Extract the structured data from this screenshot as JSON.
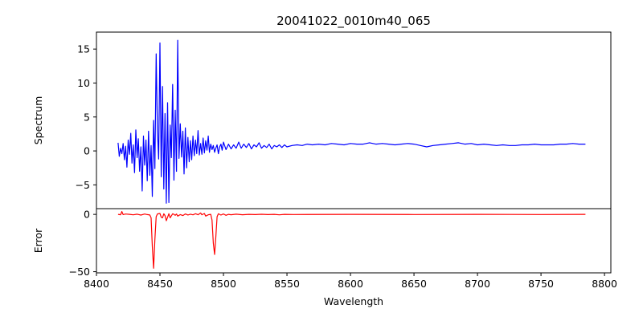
{
  "chart_data": [
    {
      "type": "line",
      "title": "20041022_0010m40_065",
      "xlabel": "",
      "ylabel": "Spectrum",
      "xlim": [
        8400,
        8805
      ],
      "ylim": [
        -8.5,
        17.5
      ],
      "yticks": [
        -5,
        0,
        5,
        10,
        15
      ],
      "grid": false,
      "series": [
        {
          "color": "#0000ff",
          "points": [
            [
              8417,
              1.2
            ],
            [
              8418,
              -0.8
            ],
            [
              8419,
              0.4
            ],
            [
              8420,
              -0.4
            ],
            [
              8421,
              1.1
            ],
            [
              8422,
              -1.3
            ],
            [
              8423,
              0.7
            ],
            [
              8424,
              -2.4
            ],
            [
              8425,
              1.6
            ],
            [
              8426,
              -0.5
            ],
            [
              8427,
              2.6
            ],
            [
              8428,
              -1.8
            ],
            [
              8429,
              0.9
            ],
            [
              8430,
              -3.2
            ],
            [
              8431,
              3.1
            ],
            [
              8432,
              -1.0
            ],
            [
              8433,
              1.8
            ],
            [
              8434,
              -3.0
            ],
            [
              8435,
              0.6
            ],
            [
              8436,
              -5.9
            ],
            [
              8437,
              2.2
            ],
            [
              8438,
              -2.1
            ],
            [
              8439,
              1.6
            ],
            [
              8440,
              -4.4
            ],
            [
              8441,
              2.9
            ],
            [
              8442,
              -3.6
            ],
            [
              8443,
              0.8
            ],
            [
              8444,
              -6.7
            ],
            [
              8445,
              4.5
            ],
            [
              8446,
              -2.6
            ],
            [
              8447,
              14.3
            ],
            [
              8448,
              3.0
            ],
            [
              8449,
              -1.2
            ],
            [
              8450,
              15.9
            ],
            [
              8451,
              -3.8
            ],
            [
              8452,
              9.5
            ],
            [
              8453,
              -5.6
            ],
            [
              8454,
              5.5
            ],
            [
              8455,
              -7.7
            ],
            [
              8456,
              7.1
            ],
            [
              8457,
              -7.6
            ],
            [
              8458,
              3.8
            ],
            [
              8459,
              -1.0
            ],
            [
              8460,
              9.8
            ],
            [
              8461,
              -4.3
            ],
            [
              8462,
              6.0
            ],
            [
              8463,
              -3.0
            ],
            [
              8464,
              16.3
            ],
            [
              8465,
              -1.1
            ],
            [
              8466,
              4.0
            ],
            [
              8467,
              -0.9
            ],
            [
              8468,
              2.9
            ],
            [
              8469,
              -3.4
            ],
            [
              8470,
              3.4
            ],
            [
              8471,
              -2.5
            ],
            [
              8472,
              2.0
            ],
            [
              8473,
              -1.6
            ],
            [
              8474,
              1.5
            ],
            [
              8475,
              -1.3
            ],
            [
              8476,
              2.2
            ],
            [
              8477,
              -0.7
            ],
            [
              8478,
              1.6
            ],
            [
              8479,
              -0.4
            ],
            [
              8480,
              3.0
            ],
            [
              8481,
              -0.6
            ],
            [
              8482,
              1.1
            ],
            [
              8483,
              -0.5
            ],
            [
              8484,
              1.9
            ],
            [
              8485,
              -0.3
            ],
            [
              8486,
              1.5
            ],
            [
              8487,
              0.1
            ],
            [
              8488,
              2.2
            ],
            [
              8489,
              -0.2
            ],
            [
              8490,
              1.0
            ],
            [
              8491,
              0.2
            ],
            [
              8492,
              0.8
            ],
            [
              8493,
              -0.2
            ],
            [
              8494,
              0.4
            ],
            [
              8495,
              0.9
            ],
            [
              8496,
              -0.4
            ],
            [
              8497,
              0.6
            ],
            [
              8498,
              1.0
            ],
            [
              8499,
              0.1
            ],
            [
              8500,
              1.3
            ],
            [
              8502,
              0.2
            ],
            [
              8504,
              1.0
            ],
            [
              8506,
              0.3
            ],
            [
              8508,
              0.9
            ],
            [
              8510,
              0.4
            ],
            [
              8512,
              1.3
            ],
            [
              8514,
              0.4
            ],
            [
              8516,
              1.0
            ],
            [
              8518,
              0.5
            ],
            [
              8520,
              1.1
            ],
            [
              8522,
              0.3
            ],
            [
              8524,
              0.9
            ],
            [
              8526,
              0.6
            ],
            [
              8528,
              1.2
            ],
            [
              8530,
              0.4
            ],
            [
              8532,
              0.8
            ],
            [
              8534,
              0.5
            ],
            [
              8536,
              1.0
            ],
            [
              8538,
              0.3
            ],
            [
              8540,
              0.8
            ],
            [
              8542,
              0.6
            ],
            [
              8544,
              0.9
            ],
            [
              8546,
              0.5
            ],
            [
              8548,
              0.9
            ],
            [
              8550,
              0.6
            ],
            [
              8554,
              0.8
            ],
            [
              8558,
              0.9
            ],
            [
              8562,
              0.8
            ],
            [
              8566,
              1.0
            ],
            [
              8570,
              0.9
            ],
            [
              8575,
              1.0
            ],
            [
              8580,
              0.9
            ],
            [
              8585,
              1.1
            ],
            [
              8590,
              1.0
            ],
            [
              8595,
              0.9
            ],
            [
              8600,
              1.1
            ],
            [
              8605,
              1.0
            ],
            [
              8610,
              1.0
            ],
            [
              8615,
              1.2
            ],
            [
              8620,
              1.0
            ],
            [
              8625,
              1.1
            ],
            [
              8630,
              1.0
            ],
            [
              8635,
              0.9
            ],
            [
              8640,
              1.0
            ],
            [
              8645,
              1.1
            ],
            [
              8650,
              1.0
            ],
            [
              8655,
              0.8
            ],
            [
              8660,
              0.6
            ],
            [
              8665,
              0.8
            ],
            [
              8670,
              0.9
            ],
            [
              8675,
              1.0
            ],
            [
              8680,
              1.1
            ],
            [
              8685,
              1.2
            ],
            [
              8690,
              1.0
            ],
            [
              8695,
              1.1
            ],
            [
              8700,
              0.9
            ],
            [
              8705,
              1.0
            ],
            [
              8710,
              0.9
            ],
            [
              8715,
              0.8
            ],
            [
              8720,
              0.9
            ],
            [
              8725,
              0.8
            ],
            [
              8730,
              0.8
            ],
            [
              8735,
              0.9
            ],
            [
              8740,
              0.9
            ],
            [
              8745,
              1.0
            ],
            [
              8750,
              0.9
            ],
            [
              8755,
              0.9
            ],
            [
              8760,
              0.9
            ],
            [
              8765,
              1.0
            ],
            [
              8770,
              1.0
            ],
            [
              8775,
              1.1
            ],
            [
              8780,
              1.0
            ],
            [
              8785,
              1.0
            ]
          ]
        }
      ]
    },
    {
      "type": "line",
      "title": "",
      "xlabel": "Wavelength",
      "ylabel": "Error",
      "xlim": [
        8400,
        8805
      ],
      "ylim": [
        -51,
        5
      ],
      "xticks": [
        8400,
        8450,
        8500,
        8550,
        8600,
        8650,
        8700,
        8750,
        8800
      ],
      "yticks": [
        -50,
        0
      ],
      "grid": false,
      "series": [
        {
          "color": "#ff0000",
          "points": [
            [
              8417,
              0
            ],
            [
              8419,
              -0.3
            ],
            [
              8420,
              2.5
            ],
            [
              8421,
              -0.2
            ],
            [
              8423,
              0.3
            ],
            [
              8426,
              0
            ],
            [
              8429,
              -0.4
            ],
            [
              8432,
              0.2
            ],
            [
              8435,
              -0.6
            ],
            [
              8438,
              0.3
            ],
            [
              8440,
              -0.2
            ],
            [
              8442,
              -0.5
            ],
            [
              8443,
              -3
            ],
            [
              8444,
              -28
            ],
            [
              8445,
              -47
            ],
            [
              8446,
              -22
            ],
            [
              8447,
              -2
            ],
            [
              8448,
              0.4
            ],
            [
              8450,
              0.8
            ],
            [
              8451,
              -2.5
            ],
            [
              8452,
              -3
            ],
            [
              8453,
              0.5
            ],
            [
              8454,
              -1
            ],
            [
              8455,
              -5.5
            ],
            [
              8456,
              -2.5
            ],
            [
              8457,
              0.6
            ],
            [
              8458,
              -3
            ],
            [
              8459,
              -1.2
            ],
            [
              8460,
              0.5
            ],
            [
              8461,
              0
            ],
            [
              8462,
              -0.8
            ],
            [
              8463,
              0.3
            ],
            [
              8464,
              -1.5
            ],
            [
              8466,
              -0.2
            ],
            [
              8468,
              -1
            ],
            [
              8470,
              0.4
            ],
            [
              8472,
              -0.5
            ],
            [
              8474,
              0.2
            ],
            [
              8476,
              -0.4
            ],
            [
              8478,
              0.6
            ],
            [
              8480,
              -0.3
            ],
            [
              8482,
              1.2
            ],
            [
              8483,
              -0.3
            ],
            [
              8485,
              0.8
            ],
            [
              8486,
              -1.5
            ],
            [
              8488,
              -0.3
            ],
            [
              8490,
              0
            ],
            [
              8491,
              -5
            ],
            [
              8492,
              -25
            ],
            [
              8493,
              -35
            ],
            [
              8494,
              -20
            ],
            [
              8495,
              -2
            ],
            [
              8496,
              0.5
            ],
            [
              8498,
              -0.6
            ],
            [
              8500,
              0.4
            ],
            [
              8502,
              -0.8
            ],
            [
              8504,
              0
            ],
            [
              8506,
              -0.3
            ],
            [
              8510,
              0.2
            ],
            [
              8515,
              -0.3
            ],
            [
              8520,
              0
            ],
            [
              8525,
              -0.2
            ],
            [
              8530,
              0.1
            ],
            [
              8535,
              -0.2
            ],
            [
              8540,
              0
            ],
            [
              8544,
              -0.4
            ],
            [
              8548,
              0
            ],
            [
              8555,
              -0.1
            ],
            [
              8600,
              0
            ],
            [
              8650,
              -0.1
            ],
            [
              8700,
              0
            ],
            [
              8750,
              -0.1
            ],
            [
              8785,
              0
            ]
          ]
        }
      ]
    }
  ]
}
